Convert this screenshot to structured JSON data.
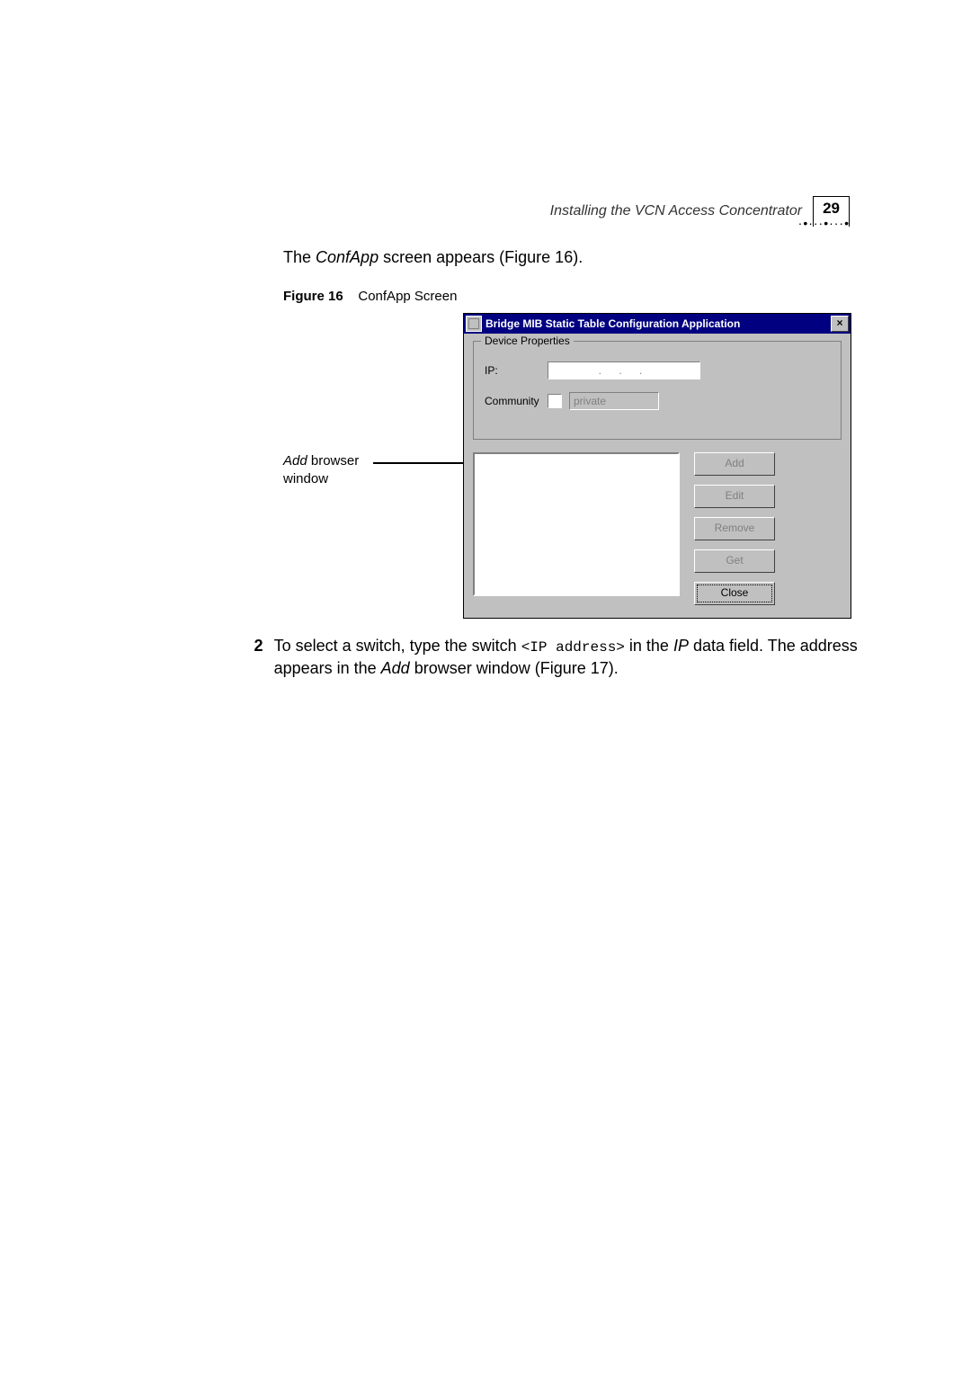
{
  "header": {
    "running_title": "Installing the VCN Access Concentrator",
    "page_number": "29"
  },
  "intro": {
    "prefix": "The ",
    "app_name": "ConfApp",
    "suffix": " screen appears (Figure 16)."
  },
  "figure_caption": {
    "label": "Figure 16",
    "title": "ConfApp Screen"
  },
  "callout": {
    "line1_italic": "Add",
    "line1_rest": " browser",
    "line2": "window"
  },
  "confapp": {
    "title": "Bridge MIB Static Table Configuration Application",
    "groupbox": "Device Properties",
    "ip_label": "IP:",
    "ip_placeholder": ".   .   .",
    "community_label": "Community",
    "community_value": "private",
    "buttons": {
      "add": "Add",
      "edit": "Edit",
      "remove": "Remove",
      "get": "Get",
      "close": "Close"
    }
  },
  "step2": {
    "number": "2",
    "t1": "To select a switch, type the switch ",
    "code": "<IP address>",
    "t2": " in the ",
    "ip_word": "IP",
    "t3": " data field. The address appears in the ",
    "add_word": "Add",
    "t4": " browser window (Figure 17)."
  }
}
